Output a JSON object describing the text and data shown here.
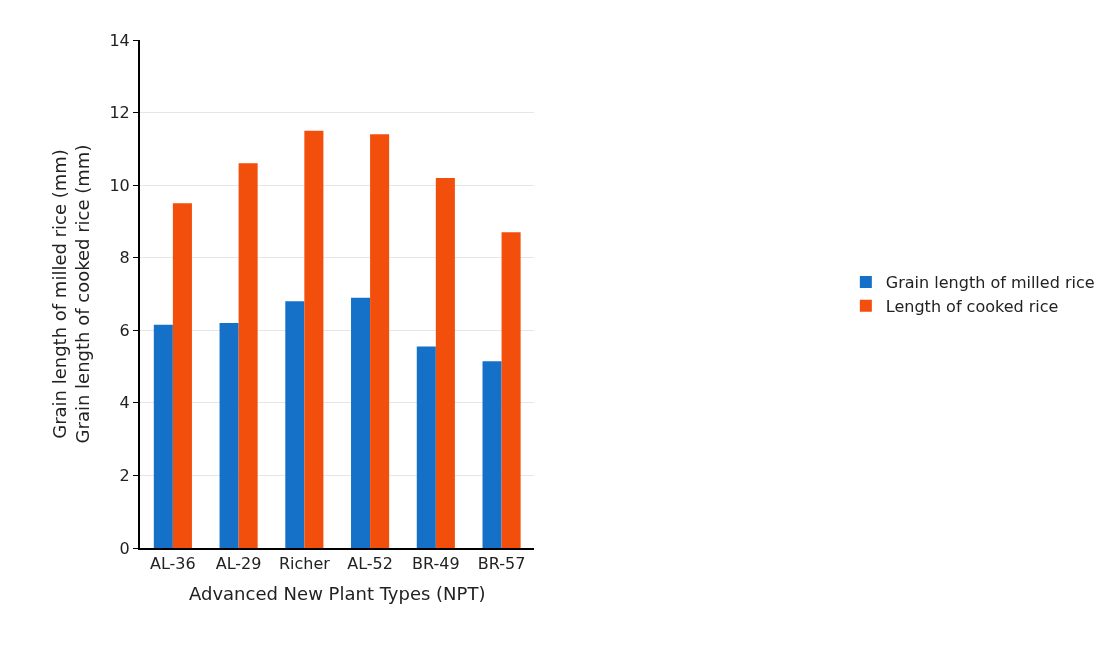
{
  "chart_data": {
    "type": "bar",
    "xlabel": "Advanced New Plant Types (NPT)",
    "ylabel": "Grain length of milled rice (mm)\nGrain length of cooked rice (mm)",
    "categories": [
      "AL-36",
      "AL-29",
      "Richer",
      "AL-52",
      "BR-49",
      "BR-57"
    ],
    "series": [
      {
        "name": "Grain length of milled rice",
        "color": "#1570c8",
        "values": [
          6.15,
          6.2,
          6.8,
          6.9,
          5.55,
          5.15
        ]
      },
      {
        "name": "Length of cooked rice",
        "color": "#f24e0c",
        "values": [
          9.5,
          10.6,
          11.5,
          11.4,
          10.2,
          8.7
        ]
      }
    ],
    "ylim": [
      0,
      14
    ],
    "yticks": [
      0,
      2,
      4,
      6,
      8,
      10,
      12,
      14
    ],
    "grid": "y",
    "legend": "right"
  }
}
